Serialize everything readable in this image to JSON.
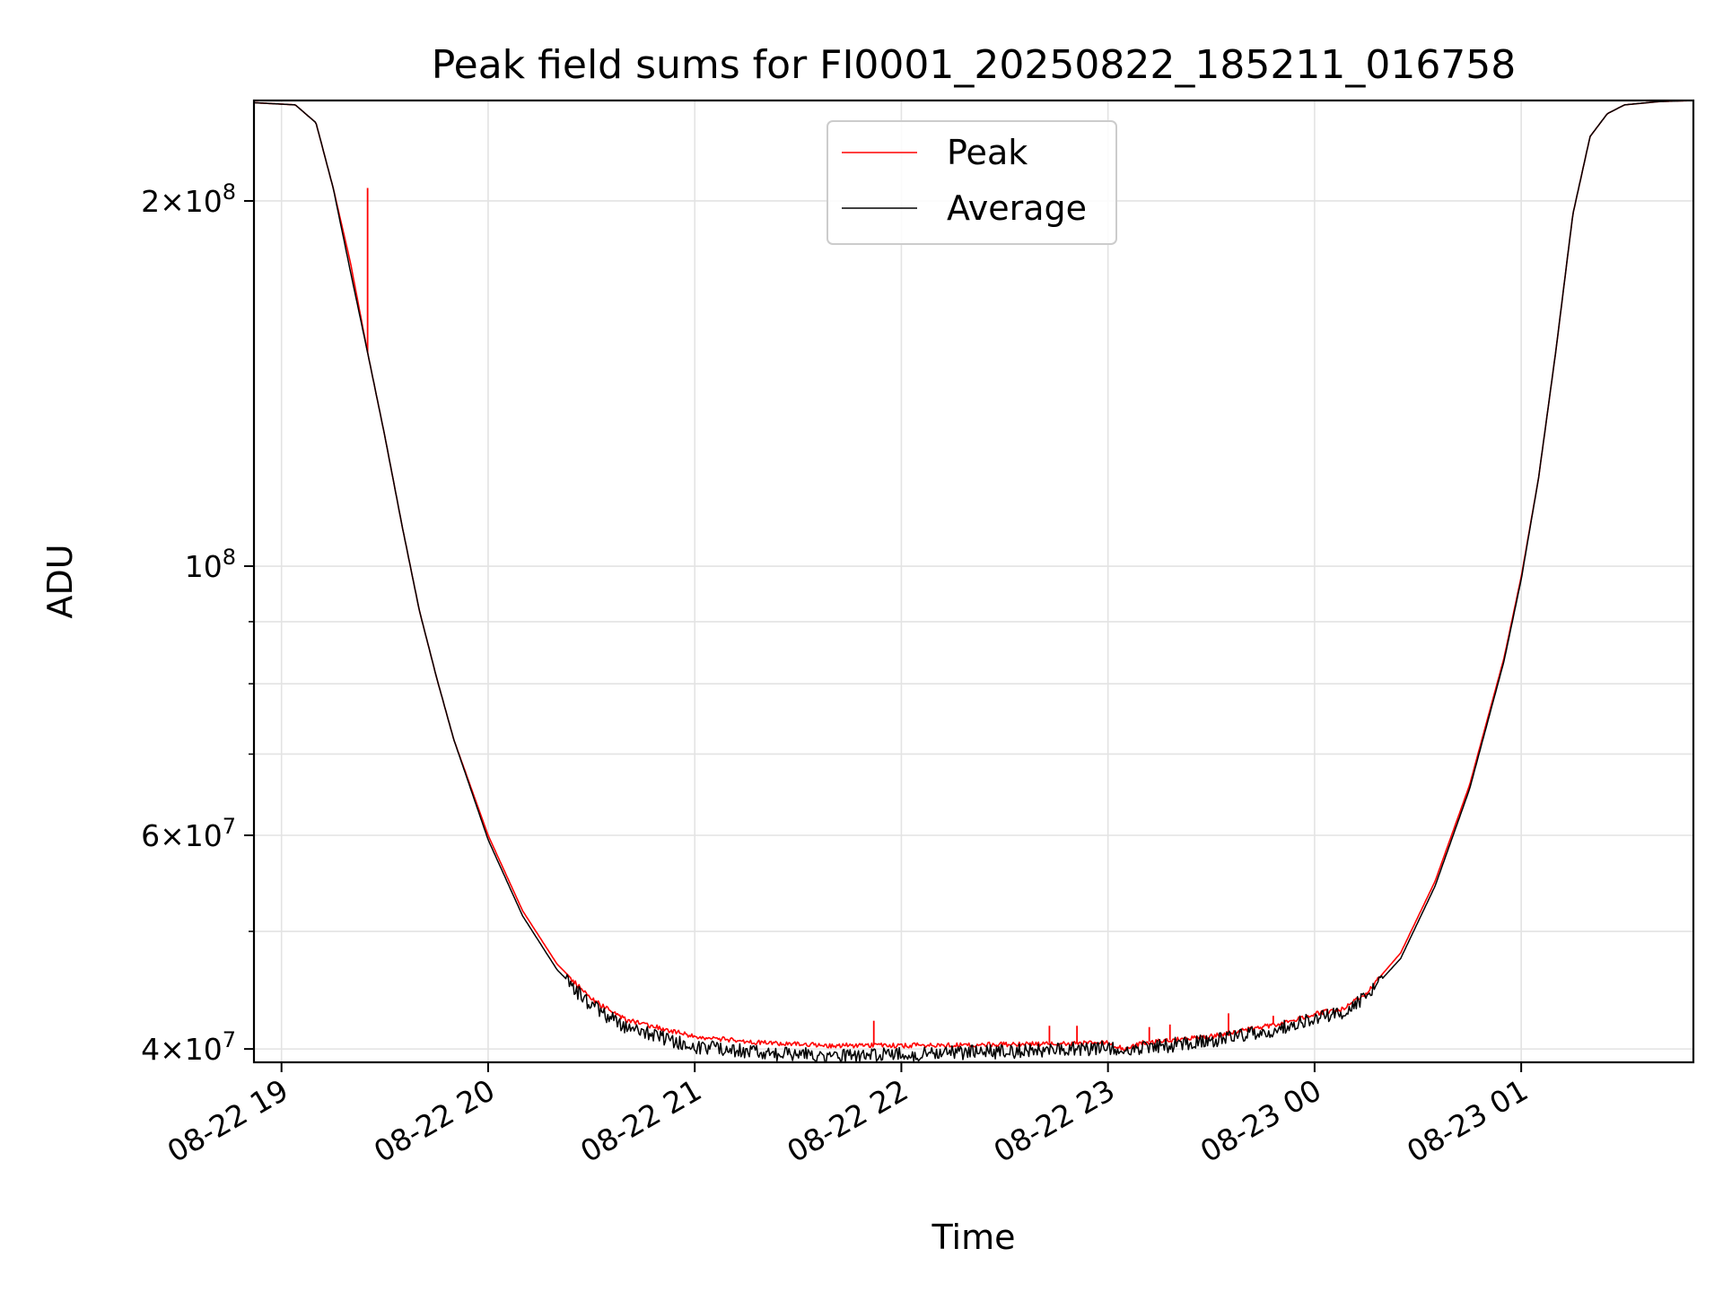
{
  "chart_data": {
    "type": "line",
    "title": "Peak field sums for FI0001_20250822_185211_016758",
    "xlabel": "Time",
    "ylabel": "ADU",
    "yscale": "log",
    "grid": true,
    "legend_position": "upper center",
    "xlim": [
      "2025-08-22 18:52",
      "2025-08-23 01:50"
    ],
    "ylim": [
      39000000,
      242000000
    ],
    "x_ticks": [
      {
        "label": "08-22 19",
        "value": "2025-08-22 19:00"
      },
      {
        "label": "08-22 20",
        "value": "2025-08-22 20:00"
      },
      {
        "label": "08-22 21",
        "value": "2025-08-22 21:00"
      },
      {
        "label": "08-22 22",
        "value": "2025-08-22 22:00"
      },
      {
        "label": "08-22 23",
        "value": "2025-08-22 23:00"
      },
      {
        "label": "08-23 00",
        "value": "2025-08-23 00:00"
      },
      {
        "label": "08-23 01",
        "value": "2025-08-23 01:00"
      }
    ],
    "y_ticks": [
      {
        "base": "4",
        "exp": "7",
        "value": 40000000
      },
      {
        "base": "6",
        "exp": "7",
        "value": 60000000
      },
      {
        "base": "",
        "exp": "8",
        "value": 100000000
      },
      {
        "base": "2",
        "exp": "8",
        "value": 200000000
      }
    ],
    "series": [
      {
        "name": "Peak",
        "color": "#ff0000",
        "x": [
          "2025-08-22 18:52",
          "2025-08-22 19:04",
          "2025-08-22 19:10",
          "2025-08-22 19:15",
          "2025-08-22 19:20",
          "2025-08-22 19:25",
          "2025-08-22 19:30",
          "2025-08-22 19:35",
          "2025-08-22 19:40",
          "2025-08-22 19:45",
          "2025-08-22 19:50",
          "2025-08-22 20:00",
          "2025-08-22 20:10",
          "2025-08-22 20:20",
          "2025-08-22 20:30",
          "2025-08-22 20:40",
          "2025-08-22 21:00",
          "2025-08-22 21:20",
          "2025-08-22 21:40",
          "2025-08-22 22:00",
          "2025-08-22 22:30",
          "2025-08-22 23:00",
          "2025-08-22 23:05",
          "2025-08-22 23:10",
          "2025-08-22 23:30",
          "2025-08-22 23:40",
          "2025-08-22 23:50",
          "2025-08-23 00:00",
          "2025-08-23 00:08",
          "2025-08-23 00:15",
          "2025-08-23 00:25",
          "2025-08-23 00:35",
          "2025-08-23 00:45",
          "2025-08-23 00:55",
          "2025-08-23 01:00",
          "2025-08-23 01:05",
          "2025-08-23 01:10",
          "2025-08-23 01:15",
          "2025-08-23 01:20",
          "2025-08-23 01:25",
          "2025-08-23 01:30",
          "2025-08-23 01:40",
          "2025-08-23 01:50"
        ],
        "values": [
          241000000,
          240000000,
          232000000,
          205000000,
          178000000,
          150000000,
          128000000,
          108000000,
          92000000,
          81000000,
          72000000,
          60000000,
          52000000,
          47000000,
          44000000,
          42300000,
          41000000,
          40500000,
          40300000,
          40300000,
          40400000,
          40500000,
          40000000,
          40500000,
          41000000,
          41500000,
          42000000,
          42800000,
          43200000,
          44500000,
          48000000,
          55000000,
          66000000,
          84000000,
          98000000,
          118000000,
          150000000,
          195000000,
          226000000,
          236000000,
          240000000,
          241500000,
          242000000
        ],
        "spikes": [
          {
            "x": "2025-08-22 19:25",
            "y": 205000000
          },
          {
            "x": "2025-08-22 21:52",
            "y": 42200000
          },
          {
            "x": "2025-08-22 22:43",
            "y": 41800000
          },
          {
            "x": "2025-08-22 22:51",
            "y": 41800000
          },
          {
            "x": "2025-08-22 23:12",
            "y": 41700000
          },
          {
            "x": "2025-08-22 23:18",
            "y": 41900000
          },
          {
            "x": "2025-08-22 23:35",
            "y": 42800000
          },
          {
            "x": "2025-08-22 23:48",
            "y": 42600000
          }
        ]
      },
      {
        "name": "Average",
        "color": "#000000",
        "x": [
          "2025-08-22 18:52",
          "2025-08-22 19:04",
          "2025-08-22 19:10",
          "2025-08-22 19:15",
          "2025-08-22 19:20",
          "2025-08-22 19:25",
          "2025-08-22 19:30",
          "2025-08-22 19:35",
          "2025-08-22 19:40",
          "2025-08-22 19:45",
          "2025-08-22 19:50",
          "2025-08-22 20:00",
          "2025-08-22 20:10",
          "2025-08-22 20:20",
          "2025-08-22 20:30",
          "2025-08-22 20:40",
          "2025-08-22 21:00",
          "2025-08-22 21:20",
          "2025-08-22 21:40",
          "2025-08-22 22:00",
          "2025-08-22 22:30",
          "2025-08-22 23:00",
          "2025-08-22 23:05",
          "2025-08-22 23:10",
          "2025-08-22 23:30",
          "2025-08-22 23:40",
          "2025-08-22 23:50",
          "2025-08-23 00:00",
          "2025-08-23 00:08",
          "2025-08-23 00:15",
          "2025-08-23 00:25",
          "2025-08-23 00:35",
          "2025-08-23 00:45",
          "2025-08-23 00:55",
          "2025-08-23 01:00",
          "2025-08-23 01:05",
          "2025-08-23 01:10",
          "2025-08-23 01:15",
          "2025-08-23 01:20",
          "2025-08-23 01:25",
          "2025-08-23 01:30",
          "2025-08-23 01:40",
          "2025-08-23 01:50"
        ],
        "values": [
          241000000,
          240000000,
          232000000,
          205000000,
          175000000,
          150000000,
          128000000,
          108000000,
          92000000,
          81000000,
          72000000,
          59500000,
          51500000,
          46500000,
          43500000,
          41800000,
          40300000,
          39800000,
          39600000,
          39700000,
          39900000,
          40200000,
          39800000,
          40200000,
          40700000,
          41200000,
          41700000,
          42500000,
          43000000,
          44200000,
          47500000,
          54500000,
          65500000,
          83500000,
          97500000,
          118000000,
          150000000,
          195000000,
          226000000,
          236000000,
          240000000,
          241500000,
          242000000
        ]
      }
    ]
  }
}
